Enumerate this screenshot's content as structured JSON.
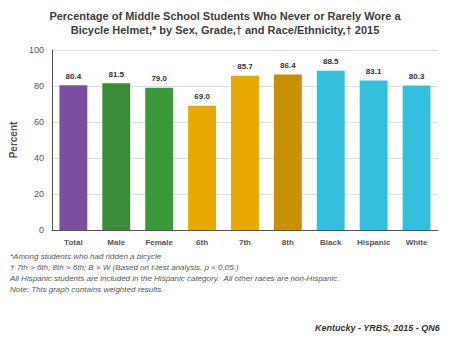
{
  "chart_data": {
    "type": "bar",
    "title": "Percentage of Middle School Students Who Never or Rarely Wore a\nBicycle Helmet,* by Sex, Grade,† and Race/Ethnicity,† 2015",
    "ylabel": "Percent",
    "categories": [
      "Total",
      "Male",
      "Female",
      "6th",
      "7th",
      "8th",
      "Black",
      "Hispanic",
      "White"
    ],
    "values": [
      80.4,
      81.5,
      79.0,
      69.0,
      85.7,
      86.4,
      88.5,
      83.1,
      80.3
    ],
    "value_labels": [
      "80.4",
      "81.5",
      "79.0",
      "69.0",
      "85.7",
      "86.4",
      "88.5",
      "83.1",
      "80.3"
    ],
    "colors": [
      "#7B4FA0",
      "#3A8C3A",
      "#3A9A3A",
      "#E8A800",
      "#E8A800",
      "#C89000",
      "#35BFDF",
      "#35BFDF",
      "#35BFDF"
    ],
    "ylim": [
      0,
      100
    ],
    "yticks": [
      0,
      20,
      40,
      60,
      80,
      100
    ],
    "grid": true,
    "data_labels": true,
    "annotations": [
      "*Among students who had ridden a bicycle",
      "† 7th > 6th; 8th > 6th; B > W (Based on t-test analysis, p < 0.05.)",
      "All Hispanic students are included in the Hispanic category.  All other races are non-Hispanic.",
      "Note: This graph contains weighted results.",
      "Kentucky - YRBS, 2015 - QN6"
    ]
  }
}
